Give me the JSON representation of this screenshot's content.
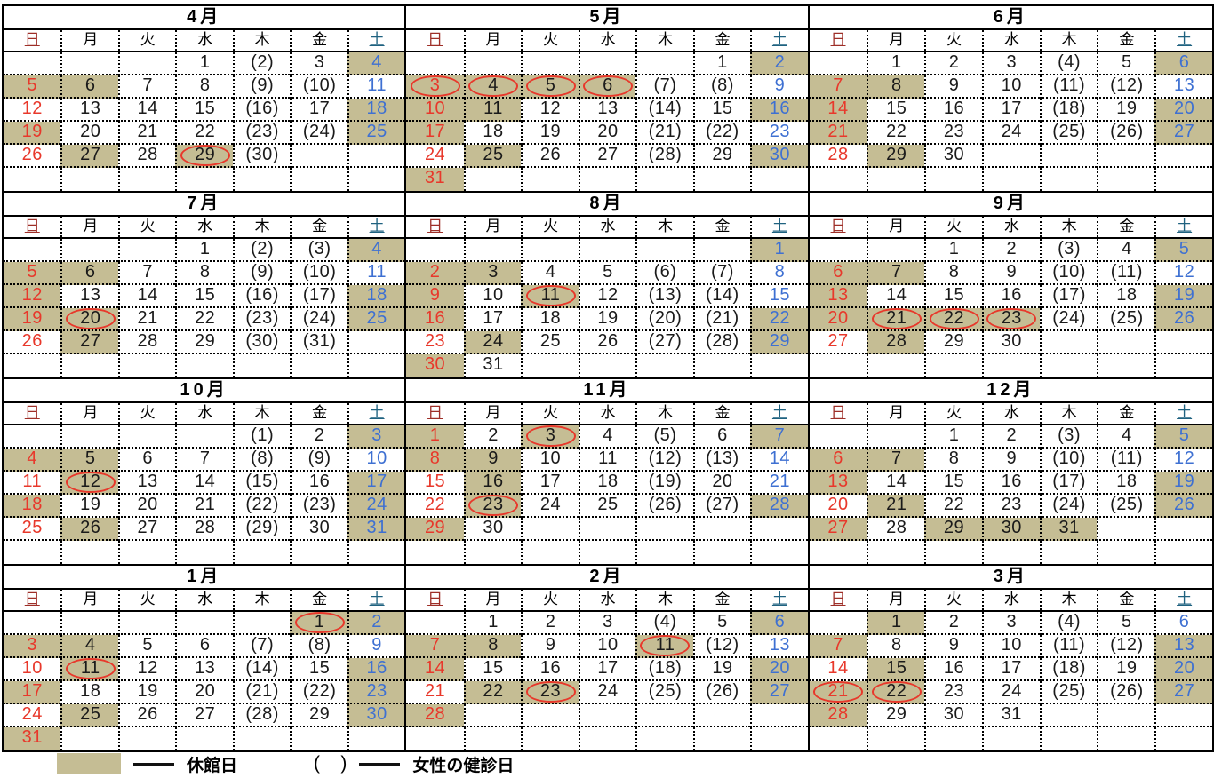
{
  "weekdays": [
    "日",
    "月",
    "火",
    "水",
    "木",
    "金",
    "土"
  ],
  "months": [
    {
      "id": "april",
      "title": "4月",
      "weeks": [
        [
          "",
          "",
          "",
          "1",
          "(2)",
          "3",
          "#4"
        ],
        [
          "#5",
          "#6",
          "7",
          "8",
          "(9)",
          "(10)",
          "11"
        ],
        [
          "12",
          "13",
          "14",
          "15",
          "(16)",
          "17",
          "#18"
        ],
        [
          "#19",
          "20",
          "21",
          "22",
          "(23)",
          "(24)",
          "#25"
        ],
        [
          "26",
          "#27",
          "28",
          "#O29",
          "(30)",
          "",
          ""
        ],
        [
          "",
          "",
          "",
          "",
          "",
          "",
          ""
        ]
      ]
    },
    {
      "id": "may",
      "title": "5月",
      "weeks": [
        [
          "",
          "",
          "",
          "",
          "",
          "1",
          "#2"
        ],
        [
          "#O3",
          "#O4",
          "#O5",
          "#O6",
          "(7)",
          "(8)",
          "9"
        ],
        [
          "#10",
          "#11",
          "12",
          "13",
          "(14)",
          "15",
          "#16"
        ],
        [
          "#17",
          "18",
          "19",
          "20",
          "(21)",
          "(22)",
          "23"
        ],
        [
          "24",
          "#25",
          "26",
          "27",
          "(28)",
          "29",
          "#30"
        ],
        [
          "#31",
          "",
          "",
          "",
          "",
          "",
          ""
        ]
      ]
    },
    {
      "id": "june",
      "title": "6月",
      "weeks": [
        [
          "",
          "1",
          "2",
          "3",
          "(4)",
          "5",
          "#6"
        ],
        [
          "#7",
          "#8",
          "9",
          "10",
          "(11)",
          "(12)",
          "13"
        ],
        [
          "#14",
          "15",
          "16",
          "17",
          "(18)",
          "19",
          "#20"
        ],
        [
          "#21",
          "22",
          "23",
          "24",
          "(25)",
          "(26)",
          "#27"
        ],
        [
          "28",
          "#29",
          "30",
          "",
          "",
          "",
          ""
        ],
        [
          "",
          "",
          "",
          "",
          "",
          "",
          ""
        ]
      ]
    },
    {
      "id": "july",
      "title": "7月",
      "weeks": [
        [
          "",
          "",
          "",
          "1",
          "(2)",
          "(3)",
          "#4"
        ],
        [
          "#5",
          "#6",
          "7",
          "8",
          "(9)",
          "(10)",
          "11"
        ],
        [
          "#12",
          "13",
          "14",
          "15",
          "(16)",
          "(17)",
          "#18"
        ],
        [
          "#19",
          "#O20",
          "21",
          "22",
          "(23)",
          "(24)",
          "#25"
        ],
        [
          "26",
          "#27",
          "28",
          "29",
          "(30)",
          "(31)",
          ""
        ],
        [
          "",
          "",
          "",
          "",
          "",
          "",
          ""
        ]
      ]
    },
    {
      "id": "august",
      "title": "8月",
      "weeks": [
        [
          "",
          "",
          "",
          "",
          "",
          "",
          "#1"
        ],
        [
          "#2",
          "#3",
          "4",
          "5",
          "(6)",
          "(7)",
          "8"
        ],
        [
          "#9",
          "10",
          "#O11",
          "12",
          "(13)",
          "(14)",
          "15"
        ],
        [
          "#16",
          "17",
          "18",
          "19",
          "(20)",
          "(21)",
          "#22"
        ],
        [
          "23",
          "#24",
          "25",
          "26",
          "(27)",
          "(28)",
          "#29"
        ],
        [
          "#30",
          "31",
          "",
          "",
          "",
          "",
          ""
        ]
      ]
    },
    {
      "id": "september",
      "title": "9月",
      "weeks": [
        [
          "",
          "",
          "1",
          "2",
          "(3)",
          "4",
          "#5"
        ],
        [
          "#6",
          "#7",
          "8",
          "9",
          "(10)",
          "(11)",
          "12"
        ],
        [
          "#13",
          "14",
          "15",
          "16",
          "(17)",
          "18",
          "#19"
        ],
        [
          "#20",
          "#O21",
          "#O22",
          "#O23",
          "(24)",
          "(25)",
          "#26"
        ],
        [
          "27",
          "#28",
          "29",
          "30",
          "",
          "",
          ""
        ],
        [
          "",
          "",
          "",
          "",
          "",
          "",
          ""
        ]
      ]
    },
    {
      "id": "october",
      "title": "10月",
      "weeks": [
        [
          "",
          "",
          "",
          "",
          "(1)",
          "2",
          "#3"
        ],
        [
          "#4",
          "#5",
          "6",
          "7",
          "(8)",
          "(9)",
          "10"
        ],
        [
          "11",
          "#O12",
          "13",
          "14",
          "(15)",
          "16",
          "#17"
        ],
        [
          "#18",
          "19",
          "20",
          "21",
          "(22)",
          "(23)",
          "#24"
        ],
        [
          "25",
          "#26",
          "27",
          "28",
          "(29)",
          "30",
          "#31"
        ],
        [
          "",
          "",
          "",
          "",
          "",
          "",
          ""
        ]
      ]
    },
    {
      "id": "november",
      "title": "11月",
      "weeks": [
        [
          "#1",
          "2",
          "#O3",
          "4",
          "(5)",
          "6",
          "#7"
        ],
        [
          "#8",
          "#9",
          "10",
          "11",
          "(12)",
          "(13)",
          "14"
        ],
        [
          "15",
          "#16",
          "17",
          "18",
          "(19)",
          "20",
          "21"
        ],
        [
          "22",
          "#O23",
          "24",
          "25",
          "(26)",
          "(27)",
          "#28"
        ],
        [
          "#29",
          "30",
          "",
          "",
          "",
          "",
          ""
        ],
        [
          "",
          "",
          "",
          "",
          "",
          "",
          ""
        ]
      ]
    },
    {
      "id": "december",
      "title": "12月",
      "weeks": [
        [
          "",
          "",
          "1",
          "2",
          "(3)",
          "4",
          "#5"
        ],
        [
          "#6",
          "#7",
          "8",
          "9",
          "(10)",
          "(11)",
          "12"
        ],
        [
          "#13",
          "14",
          "15",
          "16",
          "(17)",
          "18",
          "#19"
        ],
        [
          "20",
          "#21",
          "22",
          "23",
          "(24)",
          "(25)",
          "#26"
        ],
        [
          "#27",
          "28",
          "#29",
          "#30",
          "#31",
          "",
          ""
        ],
        [
          "",
          "",
          "",
          "",
          "",
          "",
          ""
        ]
      ]
    },
    {
      "id": "january",
      "title": "1月",
      "weeks": [
        [
          "",
          "",
          "",
          "",
          "",
          "#O1",
          "#2"
        ],
        [
          "#3",
          "#4",
          "5",
          "6",
          "(7)",
          "(8)",
          "9"
        ],
        [
          "10",
          "#O11",
          "12",
          "13",
          "(14)",
          "15",
          "#16"
        ],
        [
          "#17",
          "18",
          "19",
          "20",
          "(21)",
          "(22)",
          "#23"
        ],
        [
          "24",
          "#25",
          "26",
          "27",
          "(28)",
          "29",
          "#30"
        ],
        [
          "#31",
          "",
          "",
          "",
          "",
          "",
          ""
        ]
      ]
    },
    {
      "id": "february",
      "title": "2月",
      "weeks": [
        [
          "",
          "1",
          "2",
          "3",
          "(4)",
          "5",
          "#6"
        ],
        [
          "#7",
          "#8",
          "9",
          "10",
          "#O11",
          "(12)",
          "13"
        ],
        [
          "#14",
          "15",
          "16",
          "17",
          "(18)",
          "19",
          "#20"
        ],
        [
          "21",
          "#22",
          "#O23",
          "24",
          "(25)",
          "(26)",
          "#27"
        ],
        [
          "#28",
          "",
          "",
          "",
          "",
          "",
          ""
        ],
        [
          "",
          "",
          "",
          "",
          "",
          "",
          ""
        ]
      ]
    },
    {
      "id": "march",
      "title": "3月",
      "weeks": [
        [
          "",
          "#1",
          "2",
          "3",
          "(4)",
          "5",
          "6"
        ],
        [
          "#7",
          "8",
          "9",
          "10",
          "(11)",
          "(12)",
          "#13"
        ],
        [
          "14",
          "#15",
          "16",
          "17",
          "(18)",
          "19",
          "#20"
        ],
        [
          "#O21",
          "#O22",
          "23",
          "24",
          "(25)",
          "(26)",
          "#27"
        ],
        [
          "#28",
          "29",
          "30",
          "31",
          "",
          "",
          ""
        ],
        [
          "",
          "",
          "",
          "",
          "",
          "",
          ""
        ]
      ]
    }
  ],
  "legend": {
    "closed_label": "休館日",
    "paren_symbol": "(    )",
    "checkup_label": "女性の健診日"
  },
  "colors": {
    "closed_day_bg": "#c5bd94",
    "sunday_date": "#e8382b",
    "saturday_date": "#3e70d2",
    "header_sunday": "#9e2f28",
    "header_saturday": "#1f6280",
    "holiday_circle": "#e8382b"
  }
}
